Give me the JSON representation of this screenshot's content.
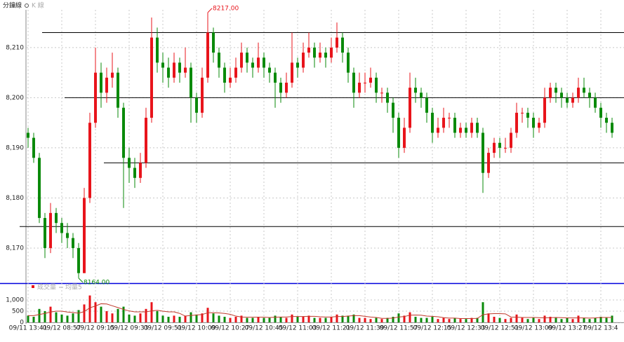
{
  "chart_data": {
    "type": "candlestick",
    "legend_tabs": [
      "分鐘線",
      "K 線"
    ],
    "volume_legend": [
      "成交量",
      "均量5"
    ],
    "up_color": "#e8141b",
    "down_color": "#0a8a0a",
    "ma_color": "#c0392b",
    "categories": [
      "09/11 13:41",
      null,
      null,
      null,
      null,
      null,
      "09/12 08:57",
      null,
      null,
      null,
      null,
      null,
      "09/12 09:15",
      null,
      null,
      null,
      null,
      null,
      "09/12 09:33",
      null,
      null,
      null,
      null,
      null,
      "09/12 09:51",
      null,
      null,
      null,
      null,
      null,
      "09/12 10:09",
      null,
      null,
      null,
      null,
      null,
      "09/12 10:27",
      null,
      null,
      null,
      null,
      null,
      "09/12 10:45",
      null,
      null,
      null,
      null,
      null,
      "09/12 11:03",
      null,
      null,
      null,
      null,
      null,
      "09/12 11:21",
      null,
      null,
      null,
      null,
      null,
      "09/12 11:39",
      null,
      null,
      null,
      null,
      null,
      "09/12 11:57",
      null,
      null,
      null,
      null,
      null,
      "09/12 12:15",
      null,
      null,
      null,
      null,
      null,
      "09/12 12:33",
      null,
      null,
      null,
      null,
      null,
      "09/12 12:51",
      null,
      null,
      null,
      null,
      null,
      "09/12 13:09",
      null,
      null,
      null,
      null,
      null,
      "09/12 13:27",
      null,
      null,
      null,
      null,
      null,
      "09/12 13:4",
      null,
      null
    ],
    "ohlc": [
      [
        8193,
        8194,
        8190,
        8192
      ],
      [
        8192,
        8193,
        8187,
        8188
      ],
      [
        8188,
        8189,
        8175,
        8176
      ],
      [
        8176,
        8177,
        8168,
        8170
      ],
      [
        8170,
        8179,
        8169,
        8177
      ],
      [
        8177,
        8178,
        8173,
        8175
      ],
      [
        8175,
        8176,
        8171,
        8173
      ],
      [
        8173,
        8175,
        8170,
        8172
      ],
      [
        8172,
        8173,
        8168,
        8170
      ],
      [
        8170,
        8171,
        8164,
        8165
      ],
      [
        8165,
        8182,
        8165,
        8180
      ],
      [
        8180,
        8197,
        8179,
        8195
      ],
      [
        8195,
        8210,
        8194,
        8205
      ],
      [
        8205,
        8207,
        8198,
        8201
      ],
      [
        8201,
        8206,
        8199,
        8204
      ],
      [
        8204,
        8209,
        8202,
        8205
      ],
      [
        8205,
        8206,
        8196,
        8198
      ],
      [
        8198,
        8199,
        8178,
        8188
      ],
      [
        8188,
        8190,
        8183,
        8186
      ],
      [
        8186,
        8188,
        8182,
        8184
      ],
      [
        8184,
        8189,
        8183,
        8187
      ],
      [
        8187,
        8198,
        8186,
        8196
      ],
      [
        8196,
        8216,
        8195,
        8212
      ],
      [
        8212,
        8214,
        8205,
        8207
      ],
      [
        8207,
        8209,
        8203,
        8206
      ],
      [
        8206,
        8208,
        8202,
        8204
      ],
      [
        8204,
        8209,
        8203,
        8207
      ],
      [
        8207,
        8208,
        8203,
        8205
      ],
      [
        8205,
        8210,
        8204,
        8206
      ],
      [
        8206,
        8207,
        8195,
        8200
      ],
      [
        8200,
        8201,
        8195,
        8197
      ],
      [
        8197,
        8206,
        8196,
        8204
      ],
      [
        8204,
        8217,
        8203,
        8213
      ],
      [
        8213,
        8214,
        8207,
        8209
      ],
      [
        8209,
        8210,
        8204,
        8206
      ],
      [
        8206,
        8207,
        8201,
        8203
      ],
      [
        8203,
        8206,
        8202,
        8204
      ],
      [
        8204,
        8208,
        8203,
        8206
      ],
      [
        8206,
        8211,
        8205,
        8209
      ],
      [
        8209,
        8210,
        8205,
        8207
      ],
      [
        8207,
        8208,
        8204,
        8206
      ],
      [
        8206,
        8211,
        8205,
        8208
      ],
      [
        8208,
        8209,
        8204,
        8206
      ],
      [
        8206,
        8207,
        8203,
        8205
      ],
      [
        8205,
        8206,
        8198,
        8203
      ],
      [
        8203,
        8204,
        8199,
        8201
      ],
      [
        8201,
        8205,
        8200,
        8203
      ],
      [
        8203,
        8213,
        8202,
        8207
      ],
      [
        8207,
        8208,
        8204,
        8206
      ],
      [
        8206,
        8211,
        8205,
        8209
      ],
      [
        8209,
        8213,
        8208,
        8210
      ],
      [
        8210,
        8211,
        8206,
        8208
      ],
      [
        8208,
        8211,
        8207,
        8209
      ],
      [
        8209,
        8210,
        8206,
        8208
      ],
      [
        8208,
        8212,
        8207,
        8210
      ],
      [
        8210,
        8215,
        8209,
        8212
      ],
      [
        8212,
        8213,
        8207,
        8209
      ],
      [
        8209,
        8210,
        8203,
        8205
      ],
      [
        8205,
        8206,
        8198,
        8201
      ],
      [
        8201,
        8205,
        8200,
        8203
      ],
      [
        8203,
        8205,
        8201,
        8203
      ],
      [
        8203,
        8206,
        8202,
        8204
      ],
      [
        8204,
        8205,
        8199,
        8201
      ],
      [
        8201,
        8202,
        8199,
        8201
      ],
      [
        8201,
        8202,
        8197,
        8199
      ],
      [
        8199,
        8200,
        8193,
        8196
      ],
      [
        8196,
        8197,
        8188,
        8190
      ],
      [
        8190,
        8196,
        8189,
        8194
      ],
      [
        8194,
        8205,
        8193,
        8202
      ],
      [
        8202,
        8204,
        8199,
        8201
      ],
      [
        8201,
        8202,
        8198,
        8200
      ],
      [
        8200,
        8201,
        8195,
        8197
      ],
      [
        8197,
        8198,
        8191,
        8193
      ],
      [
        8193,
        8196,
        8192,
        8194
      ],
      [
        8194,
        8198,
        8193,
        8196
      ],
      [
        8196,
        8197,
        8194,
        8196
      ],
      [
        8196,
        8197,
        8192,
        8193
      ],
      [
        8193,
        8195,
        8192,
        8194
      ],
      [
        8194,
        8195,
        8192,
        8193
      ],
      [
        8193,
        8196,
        8192,
        8195
      ],
      [
        8195,
        8196,
        8192,
        8193
      ],
      [
        8193,
        8194,
        8181,
        8185
      ],
      [
        8185,
        8190,
        8184,
        8189
      ],
      [
        8189,
        8192,
        8188,
        8191
      ],
      [
        8191,
        8192,
        8188,
        8190
      ],
      [
        8190,
        8192,
        8189,
        8190
      ],
      [
        8190,
        8194,
        8189,
        8193
      ],
      [
        8193,
        8199,
        8192,
        8197
      ],
      [
        8197,
        8198,
        8195,
        8197
      ],
      [
        8197,
        8198,
        8194,
        8196
      ],
      [
        8196,
        8197,
        8192,
        8194
      ],
      [
        8194,
        8196,
        8193,
        8195
      ],
      [
        8195,
        8202,
        8194,
        8200
      ],
      [
        8200,
        8203,
        8199,
        8202
      ],
      [
        8202,
        8203,
        8199,
        8201
      ],
      [
        8201,
        8202,
        8198,
        8200
      ],
      [
        8200,
        8201,
        8198,
        8199
      ],
      [
        8199,
        8201,
        8198,
        8200
      ],
      [
        8200,
        8204,
        8199,
        8202
      ],
      [
        8202,
        8204,
        8200,
        8201
      ],
      [
        8201,
        8202,
        8198,
        8200
      ],
      [
        8200,
        8201,
        8197,
        8198
      ],
      [
        8198,
        8199,
        8194,
        8196
      ],
      [
        8196,
        8197,
        8193,
        8195
      ],
      [
        8195,
        8196,
        8192,
        8193
      ]
    ],
    "volume": [
      300,
      250,
      600,
      500,
      700,
      450,
      350,
      300,
      400,
      550,
      800,
      1200,
      900,
      700,
      500,
      400,
      600,
      700,
      350,
      300,
      400,
      600,
      900,
      500,
      300,
      250,
      300,
      250,
      300,
      450,
      350,
      400,
      650,
      400,
      300,
      250,
      200,
      250,
      300,
      200,
      200,
      250,
      200,
      200,
      300,
      250,
      200,
      350,
      250,
      250,
      300,
      200,
      200,
      200,
      250,
      350,
      300,
      300,
      350,
      200,
      200,
      150,
      200,
      150,
      200,
      250,
      400,
      300,
      450,
      250,
      200,
      200,
      250,
      150,
      200,
      150,
      200,
      150,
      150,
      200,
      200,
      900,
      400,
      250,
      200,
      150,
      200,
      350,
      200,
      150,
      200,
      150,
      300,
      250,
      200,
      150,
      200,
      150,
      300,
      200,
      150,
      200,
      250,
      200,
      300
    ],
    "volume_ma": [
      300,
      300,
      350,
      400,
      460,
      500,
      500,
      460,
      440,
      410,
      480,
      650,
      730,
      830,
      820,
      740,
      660,
      580,
      510,
      470,
      470,
      470,
      510,
      540,
      500,
      470,
      470,
      400,
      280,
      310,
      330,
      350,
      430,
      430,
      420,
      400,
      360,
      280,
      240,
      230,
      230,
      230,
      230,
      220,
      230,
      240,
      240,
      260,
      260,
      260,
      270,
      270,
      250,
      240,
      240,
      260,
      260,
      280,
      300,
      300,
      270,
      240,
      220,
      180,
      180,
      190,
      240,
      260,
      320,
      330,
      320,
      280,
      270,
      250,
      210,
      190,
      190,
      170,
      170,
      170,
      180,
      340,
      380,
      390,
      390,
      380,
      240,
      230,
      220,
      220,
      220,
      210,
      200,
      210,
      220,
      210,
      200,
      200,
      200,
      200,
      190,
      200,
      220,
      220,
      220
    ],
    "ylim": [
      8163,
      8218.1
    ],
    "yticks": [
      {
        "value": 8170,
        "label": "8,170"
      },
      {
        "value": 8180,
        "label": "8,180"
      },
      {
        "value": 8190,
        "label": "8,190"
      },
      {
        "value": 8200,
        "label": "8,200"
      },
      {
        "value": 8210,
        "label": "8,210"
      }
    ],
    "volume_ylim": [
      0,
      1500
    ],
    "volume_yticks": [
      0,
      500,
      {
        "value": 1000,
        "label": "1,000"
      }
    ],
    "hlines": [
      {
        "value": 8213,
        "start": 3
      },
      {
        "value": 8200,
        "start": 7
      },
      {
        "value": 8187,
        "start": 14
      },
      {
        "value": 8174.3,
        "start": 0
      }
    ],
    "annotations": [
      {
        "value": 8217,
        "label": "8217.00",
        "index": 32
      },
      {
        "value": 8164,
        "label": "8164.00",
        "index": 9
      }
    ],
    "grid": true
  }
}
